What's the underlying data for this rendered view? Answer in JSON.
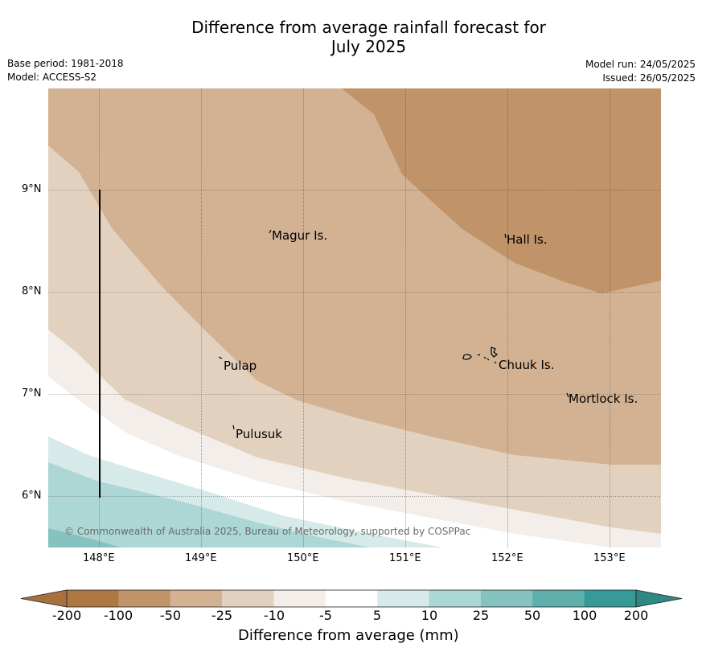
{
  "title": {
    "line1": "Difference from average rainfall forecast for",
    "line2": "July 2025"
  },
  "meta": {
    "base_period": "Base period: 1981-2018",
    "model": "Model: ACCESS-S2",
    "model_run": "Model run: 24/05/2025",
    "issued": "Issued: 26/05/2025"
  },
  "axes": {
    "x_ticks": [
      "148°E",
      "149°E",
      "150°E",
      "151°E",
      "152°E",
      "153°E"
    ],
    "y_ticks": [
      "9°N",
      "8°N",
      "7°N",
      "6°N"
    ]
  },
  "places": [
    {
      "name": "Magur Is."
    },
    {
      "name": "Hall Is."
    },
    {
      "name": "Pulap"
    },
    {
      "name": "Chuuk Is."
    },
    {
      "name": "Mortlock Is."
    },
    {
      "name": "Pulusuk"
    }
  ],
  "copyright": "© Commonwealth of Australia 2025, Bureau of Meteorology, supported by COSPPac",
  "colorbar": {
    "title": "Difference from average (mm)",
    "tick_labels": [
      "-200",
      "-100",
      "-50",
      "-25",
      "-10",
      "-5",
      "5",
      "10",
      "25",
      "50",
      "100",
      "200"
    ],
    "colors": [
      "#a6713d",
      "#ae7842",
      "#c09369",
      "#d2b293",
      "#e3d1c0",
      "#f3eee9",
      "#ffffff",
      "#d5eae9",
      "#acd7d4",
      "#86c2bf",
      "#5eafab",
      "#369b96",
      "#2e8984"
    ]
  }
}
